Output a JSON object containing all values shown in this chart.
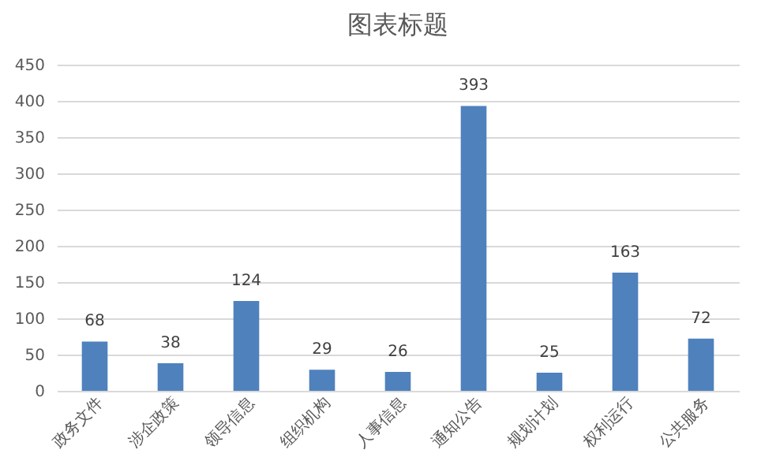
{
  "chart_data": {
    "type": "bar",
    "title": "图表标题",
    "categories": [
      "政务文件",
      "涉企政策",
      "领导信息",
      "组织机构",
      "人事信息",
      "通知公告",
      "规划计划",
      "权利运行",
      "公共服务"
    ],
    "values": [
      68,
      38,
      124,
      29,
      26,
      393,
      25,
      163,
      72
    ],
    "color": "#4f81bd",
    "ylim": [
      0,
      450
    ],
    "yticks": [
      0,
      50,
      100,
      150,
      200,
      250,
      300,
      350,
      400,
      450
    ],
    "grid": "y",
    "data_labels": true
  }
}
